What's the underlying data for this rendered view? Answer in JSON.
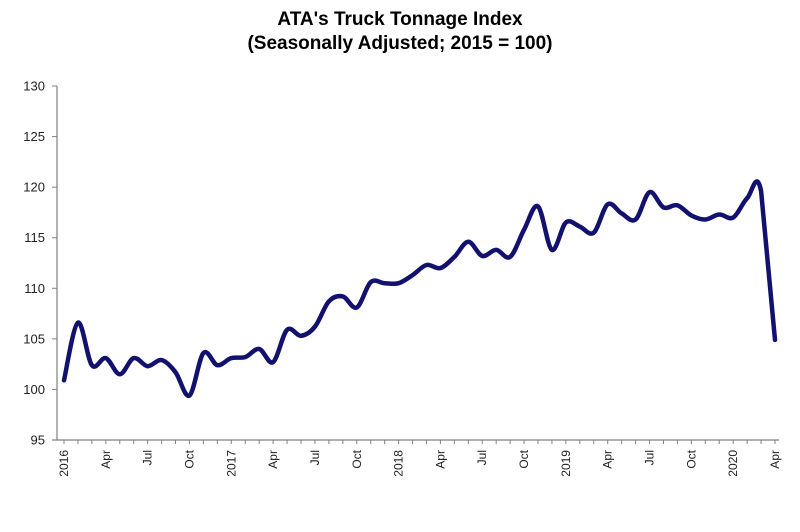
{
  "title": {
    "line1": "ATA's Truck Tonnage Index",
    "line2": "(Seasonally Adjusted; 2015 = 100)"
  },
  "chart_data": {
    "type": "line",
    "title": "ATA's Truck Tonnage Index (Seasonally Adjusted; 2015 = 100)",
    "xlabel": "",
    "ylabel": "",
    "ylim": [
      95,
      130
    ],
    "yticks": [
      95,
      100,
      105,
      110,
      115,
      120,
      125,
      130
    ],
    "grid": false,
    "legend": null,
    "line_color": "#12126e",
    "x_tick_labels": [
      "2016",
      "Apr",
      "Jul",
      "Oct",
      "2017",
      "Apr",
      "Jul",
      "Oct",
      "2018",
      "Apr",
      "Jul",
      "Oct",
      "2019",
      "Apr",
      "Jul",
      "Oct",
      "2020",
      "Apr"
    ],
    "x_tick_label_indices": [
      0,
      3,
      6,
      9,
      12,
      15,
      18,
      21,
      24,
      27,
      30,
      33,
      36,
      39,
      42,
      45,
      48,
      51
    ],
    "x": [
      "Jan 2016",
      "Feb 2016",
      "Mar 2016",
      "Apr 2016",
      "May 2016",
      "Jun 2016",
      "Jul 2016",
      "Aug 2016",
      "Sep 2016",
      "Oct 2016",
      "Nov 2016",
      "Dec 2016",
      "Jan 2017",
      "Feb 2017",
      "Mar 2017",
      "Apr 2017",
      "May 2017",
      "Jun 2017",
      "Jul 2017",
      "Aug 2017",
      "Sep 2017",
      "Oct 2017",
      "Nov 2017",
      "Dec 2017",
      "Jan 2018",
      "Feb 2018",
      "Mar 2018",
      "Apr 2018",
      "May 2018",
      "Jun 2018",
      "Jul 2018",
      "Aug 2018",
      "Sep 2018",
      "Oct 2018",
      "Nov 2018",
      "Dec 2018",
      "Jan 2019",
      "Feb 2019",
      "Mar 2019",
      "Apr 2019",
      "May 2019",
      "Jun 2019",
      "Jul 2019",
      "Aug 2019",
      "Sep 2019",
      "Oct 2019",
      "Nov 2019",
      "Dec 2019",
      "Jan 2020",
      "Feb 2020",
      "Mar 2020",
      "Apr 2020"
    ],
    "series": [
      {
        "name": "Truck Tonnage Index (SA, 2015=100)",
        "values": [
          100.9,
          106.6,
          102.4,
          103.1,
          101.5,
          103.1,
          102.3,
          102.9,
          101.7,
          99.4,
          103.6,
          102.4,
          103.1,
          103.2,
          104.0,
          102.7,
          105.9,
          105.3,
          106.2,
          108.7,
          109.2,
          108.1,
          110.6,
          110.5,
          110.5,
          111.3,
          112.3,
          112.0,
          113.1,
          114.6,
          113.2,
          113.8,
          113.1,
          115.8,
          118.1,
          113.8,
          116.5,
          116.1,
          115.5,
          118.3,
          117.4,
          116.8,
          119.5,
          118.0,
          118.2,
          117.2,
          116.8,
          117.3,
          117.0,
          118.9,
          119.6,
          104.9
        ]
      }
    ]
  }
}
